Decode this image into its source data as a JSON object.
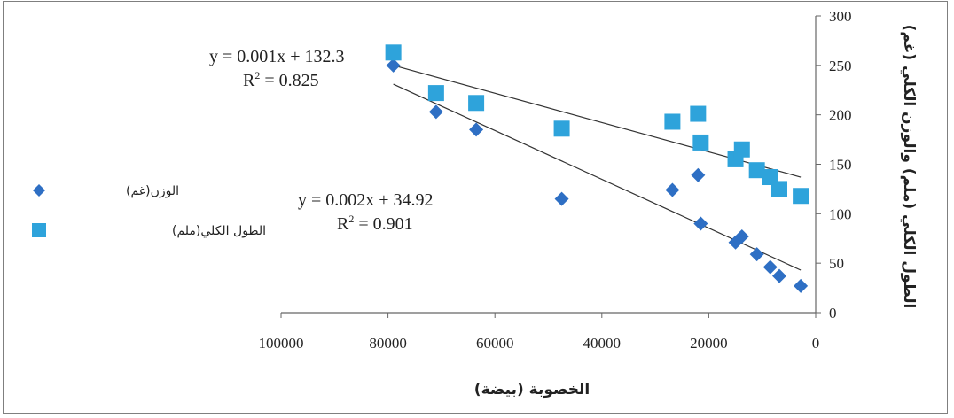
{
  "chart_data": {
    "type": "scatter",
    "title": "",
    "xlabel": "الخصوبة (بيضة)",
    "ylabel": "الطول الكلي (ملم) والوزن الكلي (غم)",
    "xlim": [
      0,
      100000
    ],
    "ylim": [
      0,
      300
    ],
    "x_reversed": true,
    "y_axis_side": "right",
    "x_ticks": [
      100000,
      80000,
      60000,
      40000,
      20000,
      0
    ],
    "y_ticks": [
      0,
      50,
      100,
      150,
      200,
      250,
      300
    ],
    "grid": false,
    "legend": "left",
    "series": [
      {
        "name": "الوزن(غم)",
        "marker": "diamond",
        "color": "#2e6fc4",
        "points": [
          [
            79000,
            250
          ],
          [
            71000,
            203
          ],
          [
            63500,
            185
          ],
          [
            47500,
            115
          ],
          [
            26800,
            124
          ],
          [
            22000,
            139
          ],
          [
            21500,
            90
          ],
          [
            15000,
            71
          ],
          [
            13800,
            77
          ],
          [
            11000,
            59
          ],
          [
            8500,
            46
          ],
          [
            6800,
            37
          ],
          [
            2800,
            27
          ]
        ]
      },
      {
        "name": "الطول الكلي(ملم)",
        "marker": "square",
        "color": "#2ea3db",
        "points": [
          [
            79000,
            263
          ],
          [
            71000,
            222
          ],
          [
            63500,
            212
          ],
          [
            47500,
            186
          ],
          [
            26800,
            193
          ],
          [
            22000,
            201
          ],
          [
            21500,
            172
          ],
          [
            15000,
            155
          ],
          [
            13800,
            165
          ],
          [
            11000,
            144
          ],
          [
            8500,
            137
          ],
          [
            6800,
            125
          ],
          [
            2800,
            118
          ]
        ]
      }
    ],
    "trendlines": [
      {
        "series": "الطول الكلي(ملم)",
        "from": [
          79000,
          250
        ],
        "to": [
          2800,
          137
        ],
        "equation": "y = 0.001x + 132.3",
        "r2_label": "R",
        "r2_value": " = 0.825"
      },
      {
        "series": "الوزن(غم)",
        "from": [
          79000,
          231
        ],
        "to": [
          2800,
          43
        ],
        "equation": "y = 0.002x + 34.92",
        "r2_label": "R",
        "r2_value": " = 0.901"
      }
    ]
  }
}
